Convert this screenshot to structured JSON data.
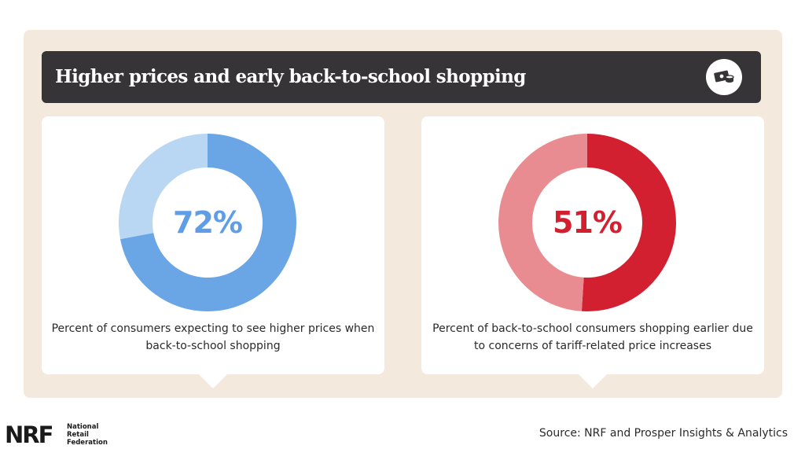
{
  "header": {
    "title": "Higher prices and early back-to-school shopping",
    "icon": "money-icon"
  },
  "chart_data": [
    {
      "type": "pie",
      "style": "donut",
      "values": [
        72,
        28
      ],
      "center_label": "72%",
      "caption": "Percent of consumers expecting to see higher prices when back-to-school shopping",
      "colors": [
        "#6aa6e6",
        "#b9d6f3"
      ]
    },
    {
      "type": "pie",
      "style": "donut",
      "values": [
        51,
        49
      ],
      "center_label": "51%",
      "caption": "Percent of back-to-school consumers shopping earlier due to concerns of tariff-related price increases",
      "colors": [
        "#d32030",
        "#e98c91"
      ]
    }
  ],
  "footer": {
    "logo_letters": "NRF",
    "logo_name": [
      "National",
      "Retail",
      "Federation"
    ],
    "source": "Source: NRF and Prosper Insights & Analytics"
  },
  "colors": {
    "background_panel": "#f4e9dd",
    "header_bg": "#363436",
    "blue_text": "#5f9de6",
    "red_text": "#d32030"
  }
}
